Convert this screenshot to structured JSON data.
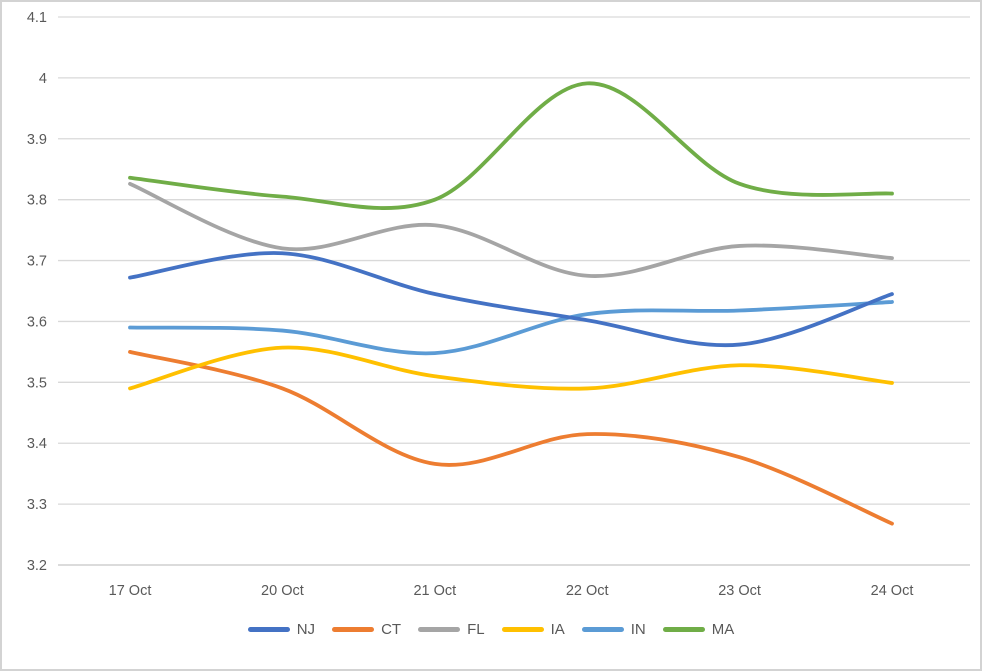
{
  "window": {
    "background": "#FFFFFF",
    "border_color": "#D3D3D3"
  },
  "chart_data": {
    "type": "line",
    "smooth": true,
    "categories": [
      "17 Oct",
      "20 Oct",
      "21 Oct",
      "22 Oct",
      "23 Oct",
      "24 Oct"
    ],
    "series": [
      {
        "name": "NJ",
        "color": "#4472C4",
        "values": [
          3.672,
          3.712,
          3.645,
          3.602,
          3.562,
          3.645
        ]
      },
      {
        "name": "CT",
        "color": "#ED7D31",
        "values": [
          3.55,
          3.49,
          3.366,
          3.415,
          3.377,
          3.268
        ]
      },
      {
        "name": "FL",
        "color": "#A5A5A5",
        "values": [
          3.826,
          3.72,
          3.758,
          3.675,
          3.724,
          3.704
        ]
      },
      {
        "name": "IA",
        "color": "#FFC000",
        "values": [
          3.49,
          3.557,
          3.51,
          3.49,
          3.528,
          3.499
        ]
      },
      {
        "name": "IN",
        "color": "#5B9BD5",
        "values": [
          3.59,
          3.585,
          3.548,
          3.612,
          3.618,
          3.632
        ]
      },
      {
        "name": "MA",
        "color": "#70AD47",
        "values": [
          3.836,
          3.805,
          3.8,
          3.991,
          3.826,
          3.81
        ]
      }
    ],
    "ylim": [
      3.2,
      4.1
    ],
    "ytick_step": 0.1,
    "y_tick_labels": [
      "4.1",
      "4",
      "3.9",
      "3.8",
      "3.7",
      "3.6",
      "3.5",
      "3.4",
      "3.3",
      "3.2"
    ],
    "grid": "horizontal",
    "gridline_color": "#D9D9D9",
    "axis_line_color": "#D6D6D6",
    "tick_label_color": "#595959",
    "legend_position": "bottom"
  }
}
